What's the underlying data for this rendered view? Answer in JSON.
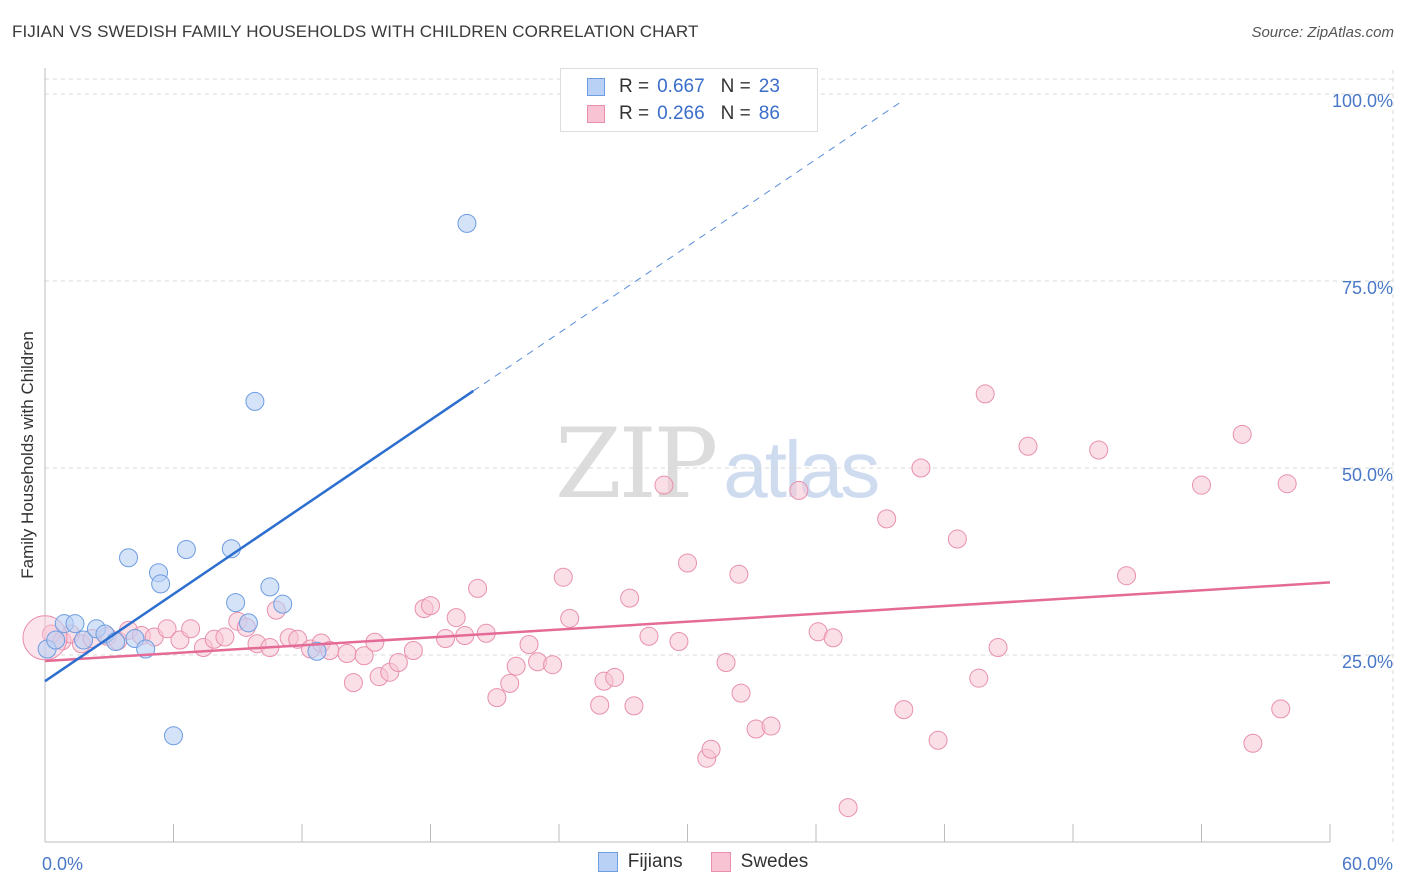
{
  "header": {
    "title": "FIJIAN VS SWEDISH FAMILY HOUSEHOLDS WITH CHILDREN CORRELATION CHART",
    "source": "Source: ZipAtlas.com"
  },
  "watermark": {
    "zip": "ZIP",
    "atlas": "atlas"
  },
  "legend": {
    "fijians": {
      "r_label": "R =",
      "r_value": "0.667",
      "n_label": "N =",
      "n_value": "23"
    },
    "swedes": {
      "r_label": "R =",
      "r_value": "0.266",
      "n_label": "N =",
      "n_value": "86"
    }
  },
  "bottom_legend": {
    "fijians": "Fijians",
    "swedes": "Swedes"
  },
  "colors": {
    "fijians_fill": "#b9d1f5",
    "fijians_stroke": "#6d9de0",
    "fijians_line": "#2d6fcf",
    "swedes_fill": "#f8c4d4",
    "swedes_stroke": "#e890ad",
    "swedes_line": "#e56b97",
    "tick_text": "#4a78c8",
    "grid": "#d8d8d8"
  },
  "chart_data": {
    "type": "scatter",
    "title": "FIJIAN VS SWEDISH FAMILY HOUSEHOLDS WITH CHILDREN CORRELATION CHART",
    "xlabel": "",
    "ylabel": "Family Households with Children",
    "xlim": [
      0,
      60
    ],
    "ylim": [
      0,
      102
    ],
    "x_tick_labels": {
      "min": "0.0%",
      "max": "60.0%"
    },
    "y_ticks": [
      {
        "value": 25,
        "label": "25.0%"
      },
      {
        "value": 50,
        "label": "50.0%"
      },
      {
        "value": 75,
        "label": "75.0%"
      },
      {
        "value": 100,
        "label": "100.0%"
      }
    ],
    "grid": true,
    "legend_position": "top-center",
    "series": [
      {
        "name": "Fijians",
        "r": 0.667,
        "n": 23,
        "trend": {
          "x0": 0,
          "y0": 21.5,
          "x1": 20,
          "y1": 60.3,
          "dash_to_x": 40,
          "dash_to_y": 99.0
        },
        "points": [
          [
            0.1,
            25.8
          ],
          [
            0.5,
            27.0
          ],
          [
            0.9,
            29.2
          ],
          [
            1.4,
            29.2
          ],
          [
            1.8,
            27.0
          ],
          [
            2.4,
            28.5
          ],
          [
            2.8,
            27.8
          ],
          [
            3.3,
            26.8
          ],
          [
            3.9,
            38.0
          ],
          [
            4.2,
            27.2
          ],
          [
            4.7,
            25.8
          ],
          [
            5.3,
            36.0
          ],
          [
            5.4,
            34.5
          ],
          [
            6.0,
            14.2
          ],
          [
            6.6,
            39.1
          ],
          [
            8.7,
            39.2
          ],
          [
            8.9,
            32.0
          ],
          [
            9.5,
            29.3
          ],
          [
            9.8,
            58.9
          ],
          [
            10.5,
            34.1
          ],
          [
            11.1,
            31.8
          ],
          [
            12.7,
            25.5
          ],
          [
            19.7,
            82.7
          ]
        ]
      },
      {
        "name": "Swedes",
        "r": 0.266,
        "n": 86,
        "trend": {
          "x0": 0,
          "y0": 24.2,
          "x1": 60,
          "y1": 34.7
        },
        "points": [
          [
            0.3,
            27.8
          ],
          [
            0.8,
            26.9
          ],
          [
            1.2,
            27.8
          ],
          [
            1.7,
            26.5
          ],
          [
            2.2,
            27.2
          ],
          [
            2.9,
            27.5
          ],
          [
            3.4,
            26.9
          ],
          [
            3.9,
            28.3
          ],
          [
            4.5,
            27.6
          ],
          [
            5.1,
            27.4
          ],
          [
            5.7,
            28.5
          ],
          [
            6.3,
            27.0
          ],
          [
            6.8,
            28.5
          ],
          [
            7.4,
            26.0
          ],
          [
            7.9,
            27.1
          ],
          [
            8.4,
            27.4
          ],
          [
            9.0,
            29.5
          ],
          [
            9.4,
            28.7
          ],
          [
            9.9,
            26.5
          ],
          [
            10.5,
            26.0
          ],
          [
            10.8,
            31.0
          ],
          [
            11.4,
            27.3
          ],
          [
            11.8,
            27.1
          ],
          [
            12.4,
            25.8
          ],
          [
            12.9,
            26.6
          ],
          [
            13.3,
            25.6
          ],
          [
            14.1,
            25.2
          ],
          [
            14.4,
            21.3
          ],
          [
            14.9,
            24.9
          ],
          [
            15.4,
            26.7
          ],
          [
            15.6,
            22.1
          ],
          [
            16.1,
            22.7
          ],
          [
            16.5,
            24.0
          ],
          [
            17.2,
            25.6
          ],
          [
            17.7,
            31.2
          ],
          [
            18.0,
            31.6
          ],
          [
            18.7,
            27.2
          ],
          [
            19.2,
            30.0
          ],
          [
            19.6,
            27.6
          ],
          [
            20.2,
            33.9
          ],
          [
            20.6,
            27.9
          ],
          [
            21.1,
            19.3
          ],
          [
            21.7,
            21.2
          ],
          [
            22.0,
            23.5
          ],
          [
            22.6,
            26.4
          ],
          [
            23.0,
            24.1
          ],
          [
            23.7,
            23.7
          ],
          [
            24.2,
            35.4
          ],
          [
            24.5,
            29.9
          ],
          [
            25.9,
            18.3
          ],
          [
            26.1,
            21.5
          ],
          [
            26.6,
            22.0
          ],
          [
            27.3,
            32.6
          ],
          [
            27.5,
            18.2
          ],
          [
            28.2,
            27.5
          ],
          [
            28.9,
            47.7
          ],
          [
            29.6,
            26.8
          ],
          [
            30.0,
            37.3
          ],
          [
            30.9,
            11.2
          ],
          [
            31.1,
            12.4
          ],
          [
            31.8,
            24.0
          ],
          [
            32.4,
            35.8
          ],
          [
            32.5,
            19.9
          ],
          [
            33.2,
            15.1
          ],
          [
            33.9,
            15.5
          ],
          [
            35.2,
            47.0
          ],
          [
            36.1,
            28.1
          ],
          [
            36.8,
            27.3
          ],
          [
            37.5,
            4.6
          ],
          [
            39.3,
            43.2
          ],
          [
            40.1,
            17.7
          ],
          [
            40.9,
            50.0
          ],
          [
            41.7,
            13.6
          ],
          [
            42.6,
            40.5
          ],
          [
            43.6,
            21.9
          ],
          [
            43.9,
            59.9
          ],
          [
            44.5,
            26.0
          ],
          [
            45.9,
            52.9
          ],
          [
            49.2,
            52.4
          ],
          [
            50.5,
            35.6
          ],
          [
            54.0,
            47.7
          ],
          [
            55.9,
            54.5
          ],
          [
            56.4,
            13.2
          ],
          [
            57.7,
            17.8
          ],
          [
            58.0,
            47.9
          ],
          [
            0.0,
            27.3
          ]
        ]
      }
    ]
  }
}
